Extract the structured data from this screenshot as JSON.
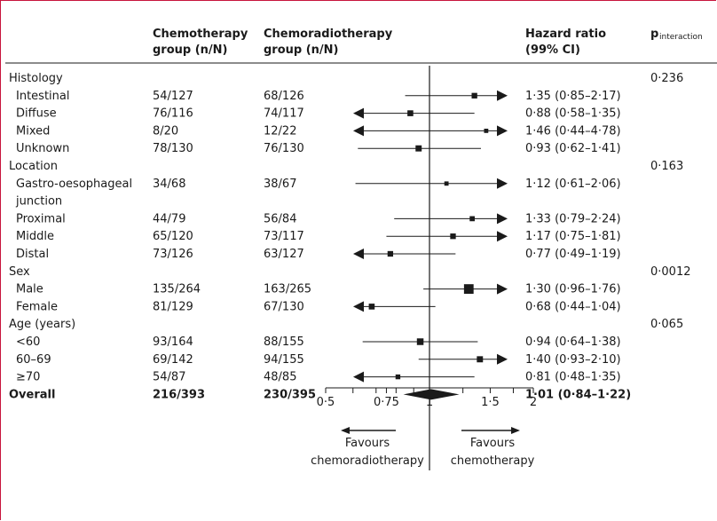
{
  "headers": {
    "chemo": [
      "Chemotherapy",
      "group (n/N)"
    ],
    "chemorad": [
      "Chemoradiotherapy",
      "group  (n/N)"
    ],
    "hr": [
      "Hazard ratio",
      "(99% CI)"
    ],
    "p_main": "p",
    "p_sub": "interaction"
  },
  "rows": [
    {
      "label": "Histology",
      "kind": "category",
      "p": "0·236"
    },
    {
      "label": "Intestinal",
      "kind": "sub",
      "chemo": "54/127",
      "chemorad": "68/126",
      "hr_text": "1·35 (0·85–2·17)"
    },
    {
      "label": "Diffuse",
      "kind": "sub",
      "chemo": "76/116",
      "chemorad": "74/117",
      "hr_text": "0·88 (0·58–1·35)"
    },
    {
      "label": "Mixed",
      "kind": "sub",
      "chemo": "8/20",
      "chemorad": "12/22",
      "hr_text": "1·46 (0·44–4·78)"
    },
    {
      "label": "Unknown",
      "kind": "sub",
      "chemo": "78/130",
      "chemorad": "76/130",
      "hr_text": "0·93 (0·62–1·41)"
    },
    {
      "label": "Location",
      "kind": "category",
      "p": "0·163"
    },
    {
      "label": "Gastro-oesophageal",
      "kind": "sub",
      "chemo": "34/68",
      "chemorad": "38/67",
      "hr_text": "1·12 (0·61–2·06)"
    },
    {
      "label": "junction",
      "kind": "cont"
    },
    {
      "label": "Proximal",
      "kind": "sub",
      "chemo": "44/79",
      "chemorad": "56/84",
      "hr_text": "1·33 (0·79–2·24)"
    },
    {
      "label": "Middle",
      "kind": "sub",
      "chemo": "65/120",
      "chemorad": "73/117",
      "hr_text": "1·17 (0·75–1·81)"
    },
    {
      "label": "Distal",
      "kind": "sub",
      "chemo": "73/126",
      "chemorad": "63/127",
      "hr_text": "0·77 (0·49–1·19)"
    },
    {
      "label": "Sex",
      "kind": "category",
      "p": "0·0012"
    },
    {
      "label": "Male",
      "kind": "sub",
      "chemo": "135/264",
      "chemorad": "163/265",
      "hr_text": "1·30 (0·96–1·76)"
    },
    {
      "label": "Female",
      "kind": "sub",
      "chemo": "81/129",
      "chemorad": "67/130",
      "hr_text": "0·68 (0·44–1·04)"
    },
    {
      "label": "Age (years)",
      "kind": "category",
      "p": "0·065"
    },
    {
      "label": "<60",
      "kind": "sub",
      "chemo": "93/164",
      "chemorad": "88/155",
      "hr_text": "0·94 (0·64–1·38)"
    },
    {
      "label": "60–69",
      "kind": "sub",
      "chemo": "69/142",
      "chemorad": "94/155",
      "hr_text": "1·40 (0·93–2·10)"
    },
    {
      "label": "≥70",
      "kind": "sub",
      "chemo": "54/87",
      "chemorad": "48/85",
      "hr_text": "0·81 (0·48–1·35)"
    },
    {
      "label": "Overall",
      "kind": "overall",
      "chemo": "216/393",
      "chemorad": "230/395",
      "hr_text": "1·01 (0·84–1·22)"
    }
  ],
  "axis": {
    "tick_labels": [
      "0·5",
      "0·75",
      "1",
      "1·5",
      "2"
    ],
    "favours_left": [
      "Favours",
      "chemoradiotherapy"
    ],
    "favours_right": [
      "Favours",
      "chemotherapy"
    ]
  },
  "chart_data": {
    "type": "forest",
    "scale": "log",
    "xlim": [
      0.5,
      2
    ],
    "ticks": [
      0.5,
      0.6,
      0.7,
      0.75,
      0.8,
      0.9,
      1,
      1.25,
      1.5,
      1.75,
      2
    ],
    "reference_line": 1,
    "points": [
      {
        "name": "Intestinal",
        "hr": 1.35,
        "lo": 0.85,
        "hi": 2.17,
        "weight": 0.55
      },
      {
        "name": "Diffuse",
        "hr": 0.88,
        "lo": 0.58,
        "hi": 1.35,
        "weight": 0.6
      },
      {
        "name": "Mixed",
        "hr": 1.46,
        "lo": 0.44,
        "hi": 4.78,
        "weight": 0.3
      },
      {
        "name": "Unknown",
        "hr": 0.93,
        "lo": 0.62,
        "hi": 1.41,
        "weight": 0.65
      },
      {
        "name": "Gastro-oesophageal junction",
        "hr": 1.12,
        "lo": 0.61,
        "hi": 2.06,
        "weight": 0.3
      },
      {
        "name": "Proximal",
        "hr": 1.33,
        "lo": 0.79,
        "hi": 2.24,
        "weight": 0.45
      },
      {
        "name": "Middle",
        "hr": 1.17,
        "lo": 0.75,
        "hi": 1.81,
        "weight": 0.55
      },
      {
        "name": "Distal",
        "hr": 0.77,
        "lo": 0.49,
        "hi": 1.19,
        "weight": 0.55
      },
      {
        "name": "Male",
        "hr": 1.3,
        "lo": 0.96,
        "hi": 1.76,
        "weight": 1.3
      },
      {
        "name": "Female",
        "hr": 0.68,
        "lo": 0.44,
        "hi": 1.04,
        "weight": 0.6
      },
      {
        "name": "<60",
        "hr": 0.94,
        "lo": 0.64,
        "hi": 1.38,
        "weight": 0.75
      },
      {
        "name": "60–69",
        "hr": 1.4,
        "lo": 0.93,
        "hi": 2.1,
        "weight": 0.65
      },
      {
        "name": "≥70",
        "hr": 0.81,
        "lo": 0.48,
        "hi": 1.35,
        "weight": 0.4
      },
      {
        "name": "Overall",
        "hr": 1.01,
        "lo": 0.84,
        "hi": 1.22,
        "summary": true
      }
    ]
  }
}
